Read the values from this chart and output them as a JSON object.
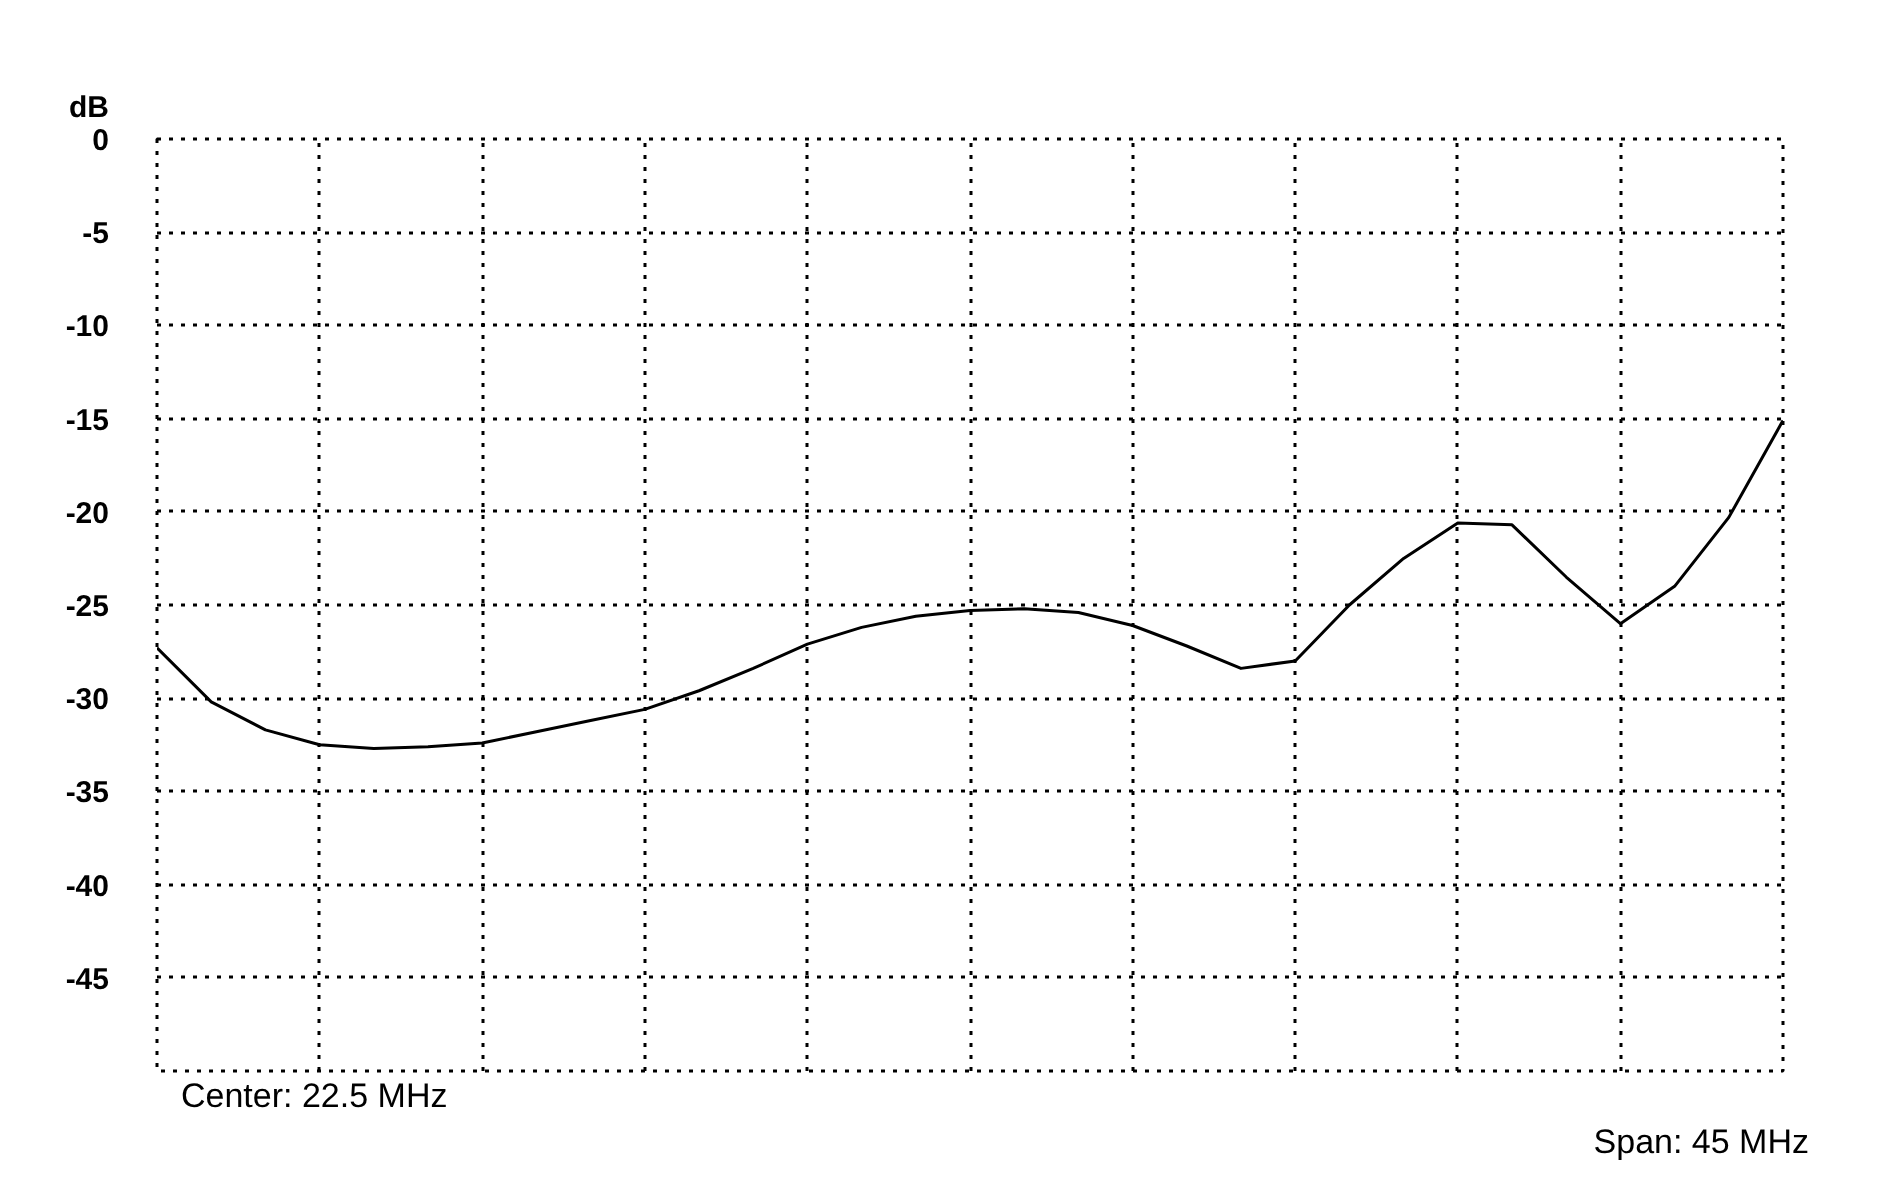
{
  "chart_data": {
    "type": "line",
    "ylabel": "dB",
    "annotations": [
      "Center: 22.5 MHz",
      "Span: 45 MHz"
    ],
    "categories": [
      null,
      null,
      null,
      null,
      null,
      null,
      null,
      null,
      null,
      null,
      null,
      null,
      null,
      null,
      null,
      null,
      null,
      null,
      null,
      null,
      null,
      null,
      null,
      null,
      null,
      null,
      null,
      null,
      null,
      null,
      null
    ],
    "series": [
      {
        "color": "#000000",
        "values": [
          -27.3,
          -30.2,
          -31.7,
          -32.5,
          -32.7,
          -32.6,
          -32.4,
          -31.8,
          -31.2,
          -30.6,
          -29.6,
          -28.4,
          -27.1,
          -26.2,
          -25.6,
          -25.3,
          -25.2,
          -25.4,
          -26.1,
          -27.2,
          -28.4,
          -28.0,
          -25.0,
          -22.5,
          -20.6,
          -20.7,
          -23.5,
          -26.0,
          -24.0,
          -20.3,
          -15.1
        ]
      }
    ],
    "ylim": [
      -50,
      0
    ],
    "yticks": [
      0,
      -5,
      -10,
      -15,
      -20,
      -25,
      -30,
      -35,
      -40,
      -45,
      {
        "value": -50,
        "label": null
      }
    ],
    "tick_labels": "y",
    "grid": true
  }
}
